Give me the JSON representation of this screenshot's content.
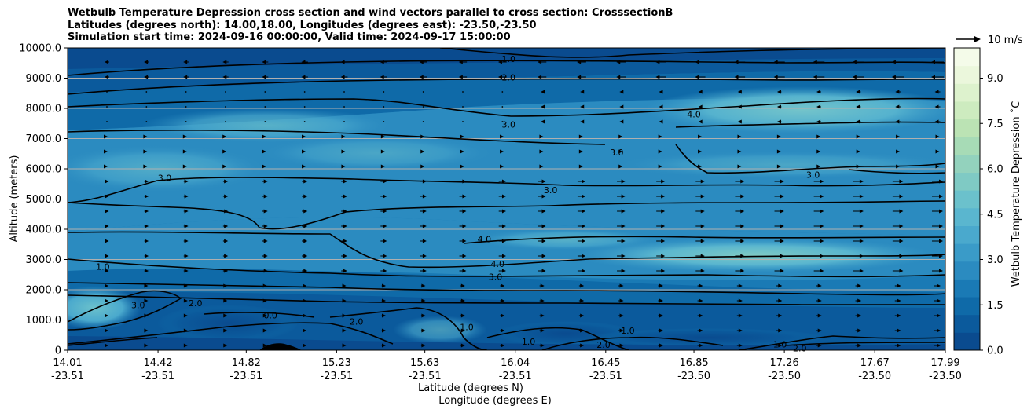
{
  "chart_data": {
    "type": "heatmap",
    "title_lines": [
      "Wetbulb Temperature Depression cross section and wind vectors parallel to cross section: CrosssectionB",
      "Latitudes (degrees north): 14.00,18.00, Longitudes (degrees east): -23.50,-23.50",
      "Simulation start time: 2024-09-16 00:00:00, Valid time: 2024-09-17 15:00:00"
    ],
    "ylabel": "Altitude (meters)",
    "xlabel_lines": [
      "Latitude (degrees N)",
      "Longitude (degrees E)"
    ],
    "ylim": [
      0,
      10000
    ],
    "xlim": [
      14.01,
      17.99
    ],
    "y_ticks": [
      "0",
      "1000.0",
      "2000.0",
      "3000.0",
      "4000.0",
      "5000.0",
      "6000.0",
      "7000.0",
      "8000.0",
      "9000.0",
      "10000.0"
    ],
    "y_tick_values": [
      0,
      1000,
      2000,
      3000,
      4000,
      5000,
      6000,
      7000,
      8000,
      9000,
      10000
    ],
    "x_tick_values": [
      14.01,
      14.42,
      14.82,
      15.23,
      15.63,
      16.04,
      16.45,
      16.85,
      17.26,
      17.67,
      17.99
    ],
    "x_ticks": [
      {
        "lat": "14.01",
        "lon": "-23.51"
      },
      {
        "lat": "14.42",
        "lon": "-23.51"
      },
      {
        "lat": "14.82",
        "lon": "-23.51"
      },
      {
        "lat": "15.23",
        "lon": "-23.51"
      },
      {
        "lat": "15.63",
        "lon": "-23.51"
      },
      {
        "lat": "16.04",
        "lon": "-23.51"
      },
      {
        "lat": "16.45",
        "lon": "-23.51"
      },
      {
        "lat": "16.85",
        "lon": "-23.50"
      },
      {
        "lat": "17.26",
        "lon": "-23.50"
      },
      {
        "lat": "17.67",
        "lon": "-23.50"
      },
      {
        "lat": "17.99",
        "lon": "-23.50"
      }
    ],
    "colorbar": {
      "label": "Wetbulb Temperature Depression $^\\circ$C",
      "label_text": "Wetbulb Temperature Depression ˚C",
      "range": [
        0,
        10
      ],
      "ticks": [
        "0.0",
        "1.5",
        "3.0",
        "4.5",
        "6.0",
        "7.5",
        "9.0"
      ],
      "tick_values": [
        0,
        1.5,
        3.0,
        4.5,
        6.0,
        7.5,
        9.0
      ],
      "colors": [
        "#0a4b8f",
        "#0b5a9c",
        "#0f6aa8",
        "#1a7ab5",
        "#2b8bc0",
        "#3a9bc8",
        "#4aa9cd",
        "#5ab6cf",
        "#6bc1cc",
        "#7fcac4",
        "#93d2bd",
        "#a7dbb6",
        "#bbe3b4",
        "#cdebbf",
        "#ddf2cd",
        "#ebf7dc",
        "#f4fbe9"
      ]
    },
    "quiver_key": {
      "label": "10 m/s",
      "speed": 10
    },
    "contour_labels": [
      {
        "text": "1.0",
        "x": 16.01,
        "y": 9640
      },
      {
        "text": "2.0",
        "x": 16.01,
        "y": 9020
      },
      {
        "text": "3.0",
        "x": 16.01,
        "y": 7470
      },
      {
        "text": "4.0",
        "x": 16.85,
        "y": 7800
      },
      {
        "text": "3.0",
        "x": 16.5,
        "y": 6550
      },
      {
        "text": "3.0",
        "x": 14.45,
        "y": 5700
      },
      {
        "text": "3.0",
        "x": 16.2,
        "y": 5300
      },
      {
        "text": "3.0",
        "x": 17.39,
        "y": 5800
      },
      {
        "text": "4.0",
        "x": 15.9,
        "y": 3680
      },
      {
        "text": "4.0",
        "x": 15.96,
        "y": 2860
      },
      {
        "text": "3.0",
        "x": 15.95,
        "y": 2430
      },
      {
        "text": "1.0",
        "x": 14.17,
        "y": 2770
      },
      {
        "text": "3.0",
        "x": 14.33,
        "y": 1500
      },
      {
        "text": "2.0",
        "x": 14.59,
        "y": 1560
      },
      {
        "text": "0.0",
        "x": 14.93,
        "y": 1150
      },
      {
        "text": "2.0",
        "x": 15.32,
        "y": 950
      },
      {
        "text": "1.0",
        "x": 15.82,
        "y": 760
      },
      {
        "text": "1.0",
        "x": 16.1,
        "y": 290
      },
      {
        "text": "1.0",
        "x": 16.55,
        "y": 650
      },
      {
        "text": "2.0",
        "x": 16.44,
        "y": 180
      },
      {
        "text": "1.0",
        "x": 17.24,
        "y": 190
      },
      {
        "text": "2.0",
        "x": 17.33,
        "y": 60
      }
    ]
  }
}
